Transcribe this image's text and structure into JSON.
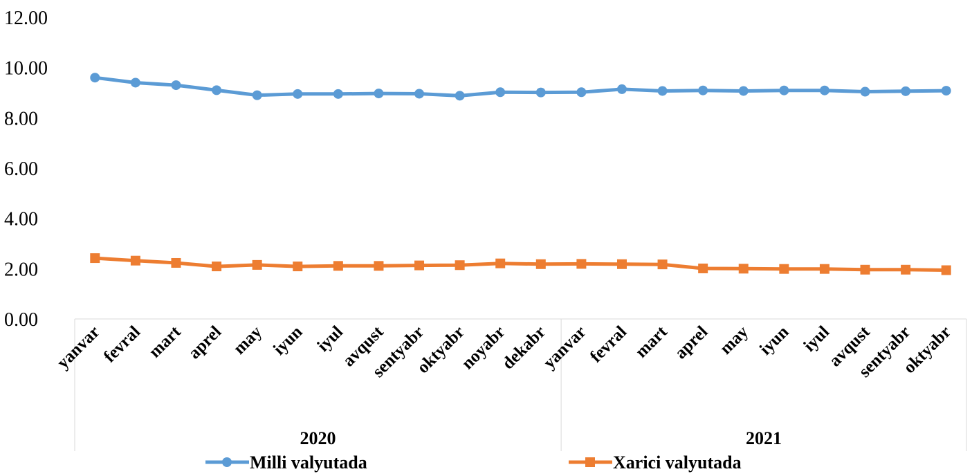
{
  "chart_data": {
    "type": "line",
    "title": "",
    "xlabel": "",
    "ylabel": "",
    "ylim": [
      0,
      12
    ],
    "yticks": [
      "0.00",
      "2.00",
      "4.00",
      "6.00",
      "8.00",
      "10.00",
      "12.00"
    ],
    "grid": false,
    "legend_position": "bottom",
    "groups": [
      {
        "label": "2020",
        "count": 12
      },
      {
        "label": "2021",
        "count": 10
      }
    ],
    "categories": [
      "yanvar",
      "fevral",
      "mart",
      "aprel",
      "may",
      "iyun",
      "iyul",
      "avqust",
      "sentyabr",
      "oktyabr",
      "noyabr",
      "dekabr",
      "yanvar",
      "fevral",
      "mart",
      "aprel",
      "may",
      "iyun",
      "iyul",
      "avqust",
      "sentyabr",
      "oktyabr"
    ],
    "series": [
      {
        "name": "Milli valyutada",
        "color": "#5B9BD5",
        "marker": "circle",
        "values": [
          9.6,
          9.4,
          9.3,
          9.1,
          8.9,
          8.95,
          8.95,
          8.97,
          8.96,
          8.88,
          9.02,
          9.01,
          9.02,
          9.14,
          9.07,
          9.09,
          9.07,
          9.09,
          9.09,
          9.04,
          9.06,
          9.08
        ]
      },
      {
        "name": "Xarici valyutada",
        "color": "#ED7D31",
        "marker": "square",
        "values": [
          2.42,
          2.32,
          2.23,
          2.09,
          2.15,
          2.09,
          2.11,
          2.11,
          2.13,
          2.14,
          2.21,
          2.18,
          2.19,
          2.18,
          2.17,
          2.01,
          2.0,
          1.99,
          1.99,
          1.96,
          1.96,
          1.94
        ]
      }
    ]
  }
}
